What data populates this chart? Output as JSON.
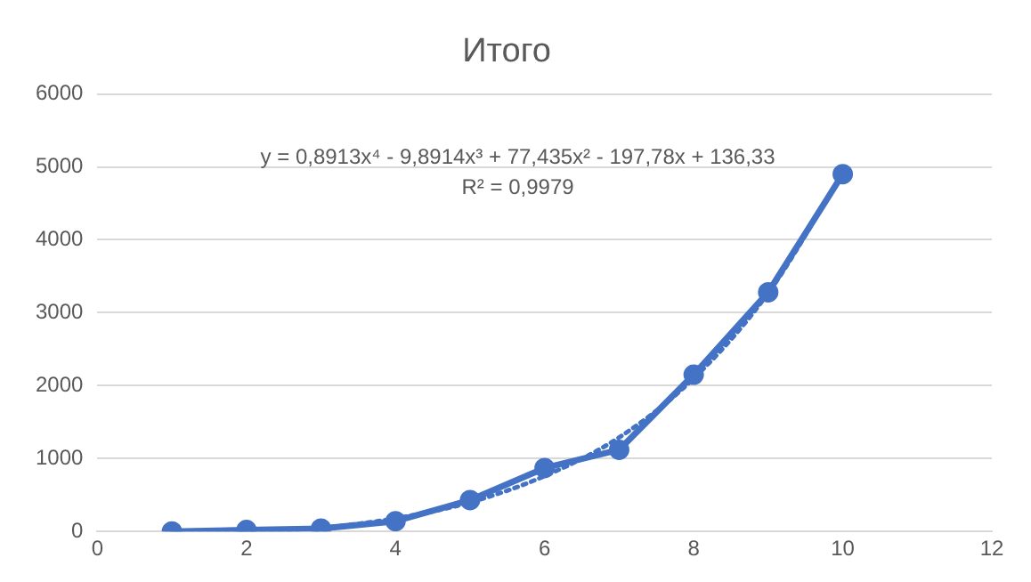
{
  "chart_data": {
    "type": "line",
    "title": "Итого",
    "series": [
      {
        "color": "#4472c4",
        "marker": "circle",
        "line_style": "solid",
        "x": [
          1,
          2,
          3,
          4,
          5,
          6,
          7,
          8,
          9,
          10
        ],
        "values": [
          0,
          20,
          40,
          140,
          430,
          870,
          1120,
          2150,
          3280,
          4900
        ]
      },
      {
        "color": "#4472c4",
        "marker": "none",
        "line_style": "dotted",
        "x": [
          1,
          2,
          3,
          4,
          5,
          6,
          7,
          8,
          9,
          10
        ],
        "values": [
          10,
          0,
          50,
          180,
          400,
          760,
          1290,
          2100,
          3270,
          4920
        ]
      }
    ],
    "xlim": [
      0,
      12
    ],
    "xticks": [
      0,
      2,
      4,
      6,
      8,
      10,
      12
    ],
    "ylim": [
      0,
      6000
    ],
    "yticks": [
      0,
      1000,
      2000,
      3000,
      4000,
      5000,
      6000
    ],
    "grid": "y",
    "legend": false,
    "annotations": [
      "y = 0,8913x⁴ - 9,8914x³ + 77,435x² - 197,78x + 136,33",
      "R² = 0,9979"
    ]
  }
}
